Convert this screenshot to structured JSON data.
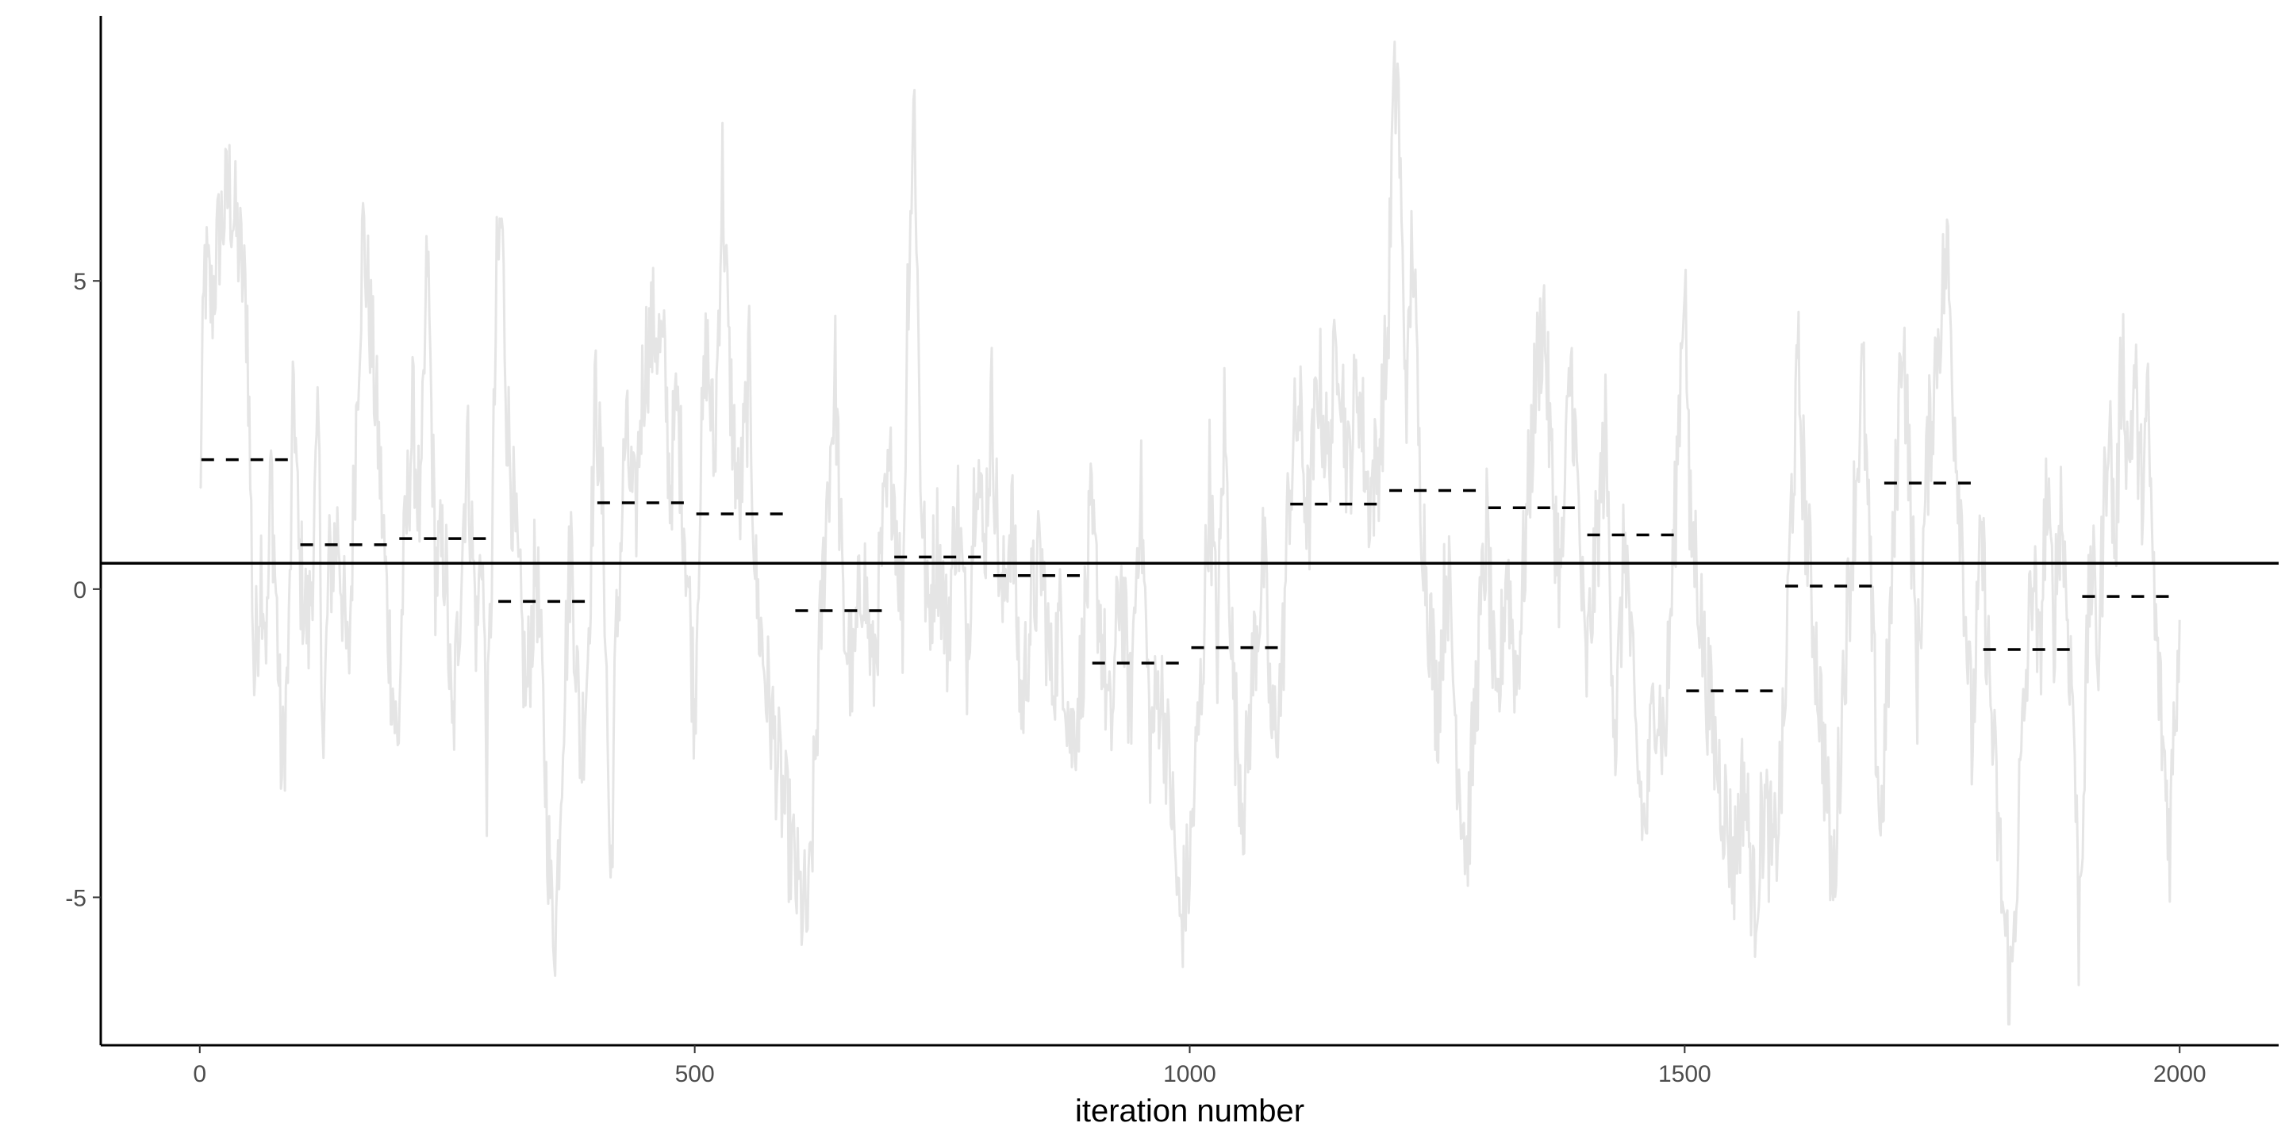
{
  "chart_data": {
    "type": "line",
    "title": "",
    "xlabel": "iteration number",
    "ylabel": "",
    "xlim": [
      -100,
      2100
    ],
    "ylim": [
      -7.4,
      9.3
    ],
    "x_ticks": [
      0,
      500,
      1000,
      1500,
      2000
    ],
    "x_tick_labels": [
      "0",
      "500",
      "1000",
      "1500",
      "2000"
    ],
    "y_ticks": [
      5,
      0,
      -5
    ],
    "y_tick_labels": [
      "5",
      "0",
      "-5"
    ],
    "grid": false,
    "legend": "none",
    "colors": {
      "trace": "#e5e5e5",
      "mean_line": "#000000",
      "block_means": "#000000",
      "axis": "#000000"
    },
    "overall_mean": 0.42,
    "trace_anchors": [
      [
        0,
        1.3
      ],
      [
        5,
        5.2
      ],
      [
        12,
        4.6
      ],
      [
        20,
        5.8
      ],
      [
        30,
        6.5
      ],
      [
        40,
        5.5
      ],
      [
        48,
        4.4
      ],
      [
        52,
        1.0
      ],
      [
        55,
        -1.5
      ],
      [
        62,
        0.5
      ],
      [
        68,
        -0.8
      ],
      [
        72,
        2.0
      ],
      [
        78,
        -0.5
      ],
      [
        83,
        -3.1
      ],
      [
        90,
        -1.0
      ],
      [
        95,
        3.5
      ],
      [
        100,
        0.5
      ],
      [
        110,
        -0.7
      ],
      [
        120,
        2.5
      ],
      [
        125,
        -2.8
      ],
      [
        130,
        0.2
      ],
      [
        140,
        1.0
      ],
      [
        150,
        -1.5
      ],
      [
        160,
        3.8
      ],
      [
        165,
        5.8
      ],
      [
        172,
        4.4
      ],
      [
        180,
        2.5
      ],
      [
        190,
        -0.5
      ],
      [
        200,
        -2.7
      ],
      [
        205,
        0.0
      ],
      [
        215,
        2.8
      ],
      [
        223,
        1.0
      ],
      [
        230,
        5.5
      ],
      [
        238,
        0.3
      ],
      [
        248,
        0.6
      ],
      [
        255,
        -2.6
      ],
      [
        262,
        -0.3
      ],
      [
        270,
        2.4
      ],
      [
        280,
        -0.8
      ],
      [
        285,
        1.0
      ],
      [
        290,
        -3.0
      ],
      [
        295,
        0.5
      ],
      [
        300,
        5.0
      ],
      [
        305,
        6.0
      ],
      [
        310,
        3.0
      ],
      [
        320,
        0.5
      ],
      [
        330,
        -1.8
      ],
      [
        340,
        0.5
      ],
      [
        355,
        -5.2
      ],
      [
        360,
        -5.4
      ],
      [
        367,
        -2.0
      ],
      [
        375,
        0.8
      ],
      [
        385,
        -2.8
      ],
      [
        392,
        -1.0
      ],
      [
        400,
        3.2
      ],
      [
        408,
        1.0
      ],
      [
        415,
        -5.0
      ],
      [
        420,
        -1.2
      ],
      [
        430,
        2.5
      ],
      [
        440,
        1.0
      ],
      [
        445,
        2.8
      ],
      [
        450,
        3.8
      ],
      [
        460,
        4.3
      ],
      [
        470,
        3.5
      ],
      [
        475,
        1.6
      ],
      [
        482,
        3.0
      ],
      [
        492,
        0.5
      ],
      [
        500,
        -2.0
      ],
      [
        505,
        1.5
      ],
      [
        512,
        4.0
      ],
      [
        520,
        2.0
      ],
      [
        528,
        6.8
      ],
      [
        535,
        3.5
      ],
      [
        545,
        1.2
      ],
      [
        555,
        3.5
      ],
      [
        562,
        0.0
      ],
      [
        572,
        -1.5
      ],
      [
        585,
        -3.0
      ],
      [
        595,
        -4.0
      ],
      [
        605,
        -5.0
      ],
      [
        615,
        -5.4
      ],
      [
        625,
        -1.5
      ],
      [
        632,
        1.0
      ],
      [
        642,
        3.5
      ],
      [
        650,
        -0.5
      ],
      [
        660,
        -1.5
      ],
      [
        670,
        0.5
      ],
      [
        680,
        -1.5
      ],
      [
        690,
        0.8
      ],
      [
        700,
        2.0
      ],
      [
        710,
        -0.5
      ],
      [
        715,
        4.8
      ],
      [
        722,
        8.0
      ],
      [
        728,
        2.0
      ],
      [
        735,
        -0.5
      ],
      [
        745,
        0.8
      ],
      [
        755,
        -0.8
      ],
      [
        765,
        1.5
      ],
      [
        775,
        -1.0
      ],
      [
        785,
        2.5
      ],
      [
        792,
        0.5
      ],
      [
        800,
        3.0
      ],
      [
        810,
        -0.5
      ],
      [
        820,
        1.3
      ],
      [
        830,
        -2.0
      ],
      [
        840,
        -0.3
      ],
      [
        850,
        0.5
      ],
      [
        860,
        -1.5
      ],
      [
        870,
        -0.5
      ],
      [
        880,
        -2.5
      ],
      [
        890,
        -1.5
      ],
      [
        900,
        1.0
      ],
      [
        910,
        -0.5
      ],
      [
        920,
        -2.5
      ],
      [
        930,
        0.3
      ],
      [
        940,
        -2.0
      ],
      [
        950,
        1.8
      ],
      [
        960,
        -2.5
      ],
      [
        970,
        -1.5
      ],
      [
        980,
        -3.0
      ],
      [
        990,
        -5.5
      ],
      [
        1000,
        -4.5
      ],
      [
        1005,
        -3.2
      ],
      [
        1012,
        -1.5
      ],
      [
        1020,
        1.8
      ],
      [
        1028,
        -1.0
      ],
      [
        1035,
        2.8
      ],
      [
        1045,
        -2.0
      ],
      [
        1055,
        -3.5
      ],
      [
        1065,
        -1.0
      ],
      [
        1075,
        0.5
      ],
      [
        1083,
        -2.5
      ],
      [
        1093,
        -1.5
      ],
      [
        1100,
        1.5
      ],
      [
        1110,
        3.0
      ],
      [
        1120,
        1.0
      ],
      [
        1130,
        3.5
      ],
      [
        1140,
        2.0
      ],
      [
        1150,
        4.3
      ],
      [
        1160,
        1.8
      ],
      [
        1170,
        3.5
      ],
      [
        1180,
        1.5
      ],
      [
        1190,
        2.0
      ],
      [
        1200,
        4.0
      ],
      [
        1205,
        7.5
      ],
      [
        1210,
        8.5
      ],
      [
        1215,
        5.0
      ],
      [
        1220,
        3.0
      ],
      [
        1225,
        6.0
      ],
      [
        1232,
        2.0
      ],
      [
        1240,
        0.0
      ],
      [
        1250,
        -2.0
      ],
      [
        1260,
        0.5
      ],
      [
        1270,
        -2.5
      ],
      [
        1280,
        -4.3
      ],
      [
        1290,
        -1.5
      ],
      [
        1300,
        1.0
      ],
      [
        1310,
        -2.5
      ],
      [
        1320,
        0.5
      ],
      [
        1330,
        -1.5
      ],
      [
        1340,
        1.0
      ],
      [
        1350,
        3.5
      ],
      [
        1358,
        4.5
      ],
      [
        1365,
        2.0
      ],
      [
        1375,
        0.0
      ],
      [
        1385,
        3.8
      ],
      [
        1392,
        1.5
      ],
      [
        1400,
        -1.5
      ],
      [
        1410,
        0.5
      ],
      [
        1420,
        2.5
      ],
      [
        1430,
        -2.5
      ],
      [
        1440,
        1.0
      ],
      [
        1450,
        -2.5
      ],
      [
        1460,
        -4.0
      ],
      [
        1470,
        -1.5
      ],
      [
        1480,
        -2.5
      ],
      [
        1490,
        1.0
      ],
      [
        1500,
        5.5
      ],
      [
        1505,
        1.0
      ],
      [
        1512,
        0.5
      ],
      [
        1520,
        -1.2
      ],
      [
        1530,
        -2.5
      ],
      [
        1540,
        -3.5
      ],
      [
        1550,
        -4.5
      ],
      [
        1560,
        -3.0
      ],
      [
        1570,
        -5.2
      ],
      [
        1580,
        -3.5
      ],
      [
        1590,
        -4.5
      ],
      [
        1600,
        -2.5
      ],
      [
        1608,
        1.5
      ],
      [
        1615,
        3.5
      ],
      [
        1622,
        1.2
      ],
      [
        1630,
        -0.5
      ],
      [
        1640,
        -2.5
      ],
      [
        1650,
        -5.0
      ],
      [
        1660,
        -1.5
      ],
      [
        1670,
        1.0
      ],
      [
        1680,
        3.5
      ],
      [
        1690,
        -1.0
      ],
      [
        1698,
        -4.0
      ],
      [
        1705,
        -1.5
      ],
      [
        1712,
        1.0
      ],
      [
        1720,
        4.5
      ],
      [
        1728,
        1.5
      ],
      [
        1735,
        -1.5
      ],
      [
        1745,
        2.0
      ],
      [
        1755,
        4.0
      ],
      [
        1765,
        5.5
      ],
      [
        1772,
        3.0
      ],
      [
        1780,
        1.0
      ],
      [
        1790,
        -2.5
      ],
      [
        1800,
        0.8
      ],
      [
        1808,
        -1.5
      ],
      [
        1815,
        -3.5
      ],
      [
        1823,
        -5.5
      ],
      [
        1830,
        -6.5
      ],
      [
        1838,
        -3.5
      ],
      [
        1845,
        -1.5
      ],
      [
        1852,
        0.5
      ],
      [
        1858,
        -1.5
      ],
      [
        1865,
        1.5
      ],
      [
        1873,
        -0.5
      ],
      [
        1880,
        1.5
      ],
      [
        1888,
        -0.8
      ],
      [
        1893,
        -2.0
      ],
      [
        1898,
        -5.5
      ],
      [
        1903,
        -3.0
      ],
      [
        1910,
        0.5
      ],
      [
        1918,
        -1.0
      ],
      [
        1928,
        3.0
      ],
      [
        1935,
        0.5
      ],
      [
        1942,
        4.0
      ],
      [
        1948,
        2.0
      ],
      [
        1955,
        3.5
      ],
      [
        1960,
        1.5
      ],
      [
        1968,
        2.8
      ],
      [
        1975,
        -0.5
      ],
      [
        1983,
        -2.5
      ],
      [
        1990,
        -4.0
      ],
      [
        1995,
        -2.0
      ],
      [
        2000,
        -0.5
      ]
    ],
    "block_means": [
      {
        "start": 0,
        "end": 100,
        "value": 2.1
      },
      {
        "start": 100,
        "end": 200,
        "value": 0.72
      },
      {
        "start": 200,
        "end": 300,
        "value": 0.82
      },
      {
        "start": 300,
        "end": 400,
        "value": -0.2
      },
      {
        "start": 400,
        "end": 500,
        "value": 1.4
      },
      {
        "start": 500,
        "end": 600,
        "value": 1.22
      },
      {
        "start": 600,
        "end": 700,
        "value": -0.35
      },
      {
        "start": 700,
        "end": 800,
        "value": 0.52
      },
      {
        "start": 800,
        "end": 900,
        "value": 0.22
      },
      {
        "start": 900,
        "end": 1000,
        "value": -1.2
      },
      {
        "start": 1000,
        "end": 1100,
        "value": -0.95
      },
      {
        "start": 1100,
        "end": 1200,
        "value": 1.38
      },
      {
        "start": 1200,
        "end": 1300,
        "value": 1.6
      },
      {
        "start": 1300,
        "end": 1400,
        "value": 1.32
      },
      {
        "start": 1400,
        "end": 1500,
        "value": 0.88
      },
      {
        "start": 1500,
        "end": 1600,
        "value": -1.65
      },
      {
        "start": 1600,
        "end": 1700,
        "value": 0.05
      },
      {
        "start": 1700,
        "end": 1800,
        "value": 1.72
      },
      {
        "start": 1800,
        "end": 1900,
        "value": -0.98
      },
      {
        "start": 1900,
        "end": 2000,
        "value": -0.12
      }
    ]
  }
}
